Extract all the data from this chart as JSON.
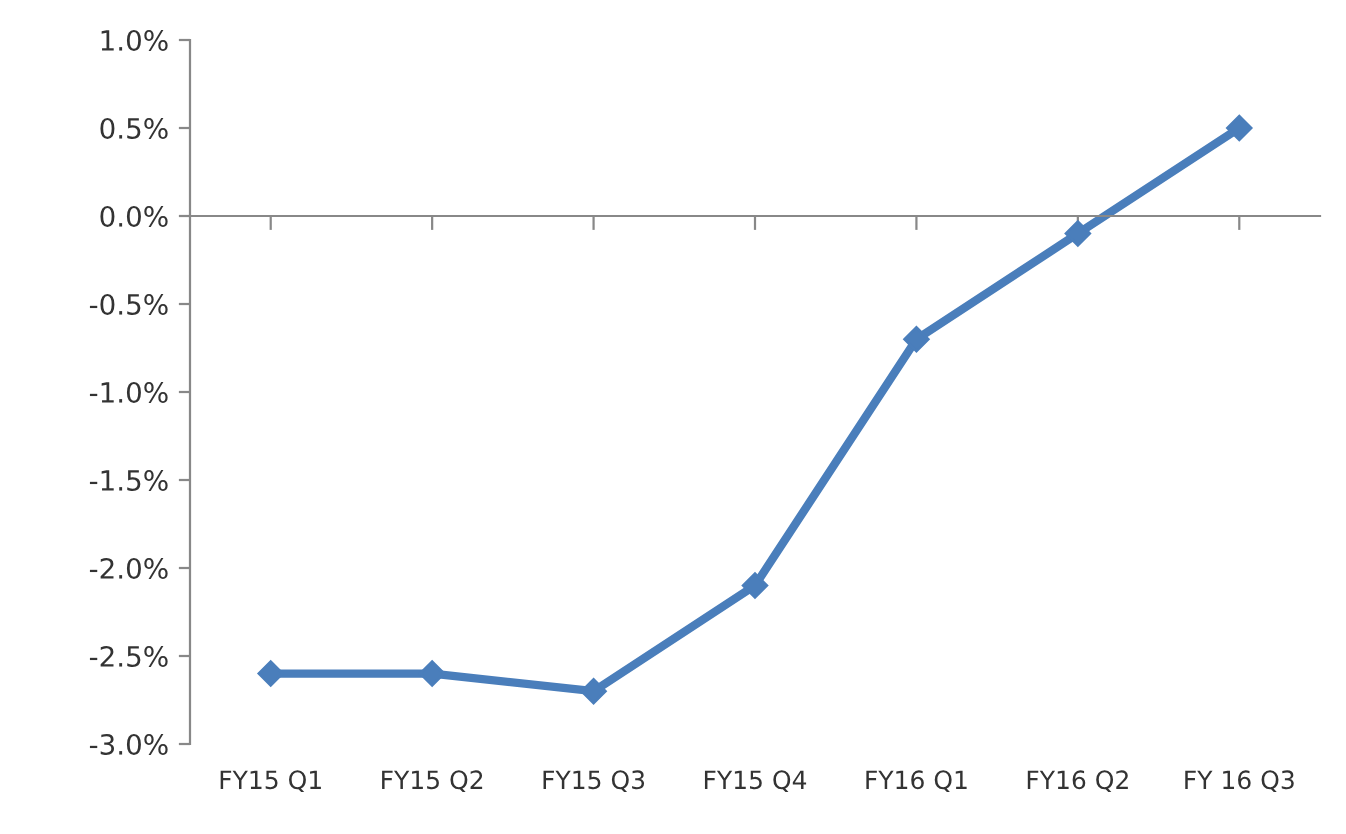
{
  "chart_data": {
    "type": "line",
    "categories": [
      "FY15 Q1",
      "FY15 Q2",
      "FY15 Q3",
      "FY15 Q4",
      "FY16 Q1",
      "FY16 Q2",
      "FY 16 Q3"
    ],
    "series": [
      {
        "color": "#4a7ebb",
        "values": [
          -2.6,
          -2.6,
          -2.7,
          -2.1,
          -0.7,
          -0.1,
          0.5
        ]
      }
    ],
    "ylim": [
      -3.0,
      1.0
    ],
    "yticks": [
      {
        "value": -3.0,
        "label": "-3.0%"
      },
      {
        "value": -2.5,
        "label": "-2.5%"
      },
      {
        "value": -2.0,
        "label": "-2.0%"
      },
      {
        "value": -1.5,
        "label": "-1.5%"
      },
      {
        "value": -1.0,
        "label": "-1.0%"
      },
      {
        "value": -0.5,
        "label": "-0.5%"
      },
      {
        "value": 0.0,
        "label": "0.0%"
      },
      {
        "value": 0.5,
        "label": "0.5%"
      },
      {
        "value": 1.0,
        "label": "1.0%"
      }
    ],
    "legend": false,
    "marker": "diamond",
    "line_style": "solid"
  }
}
